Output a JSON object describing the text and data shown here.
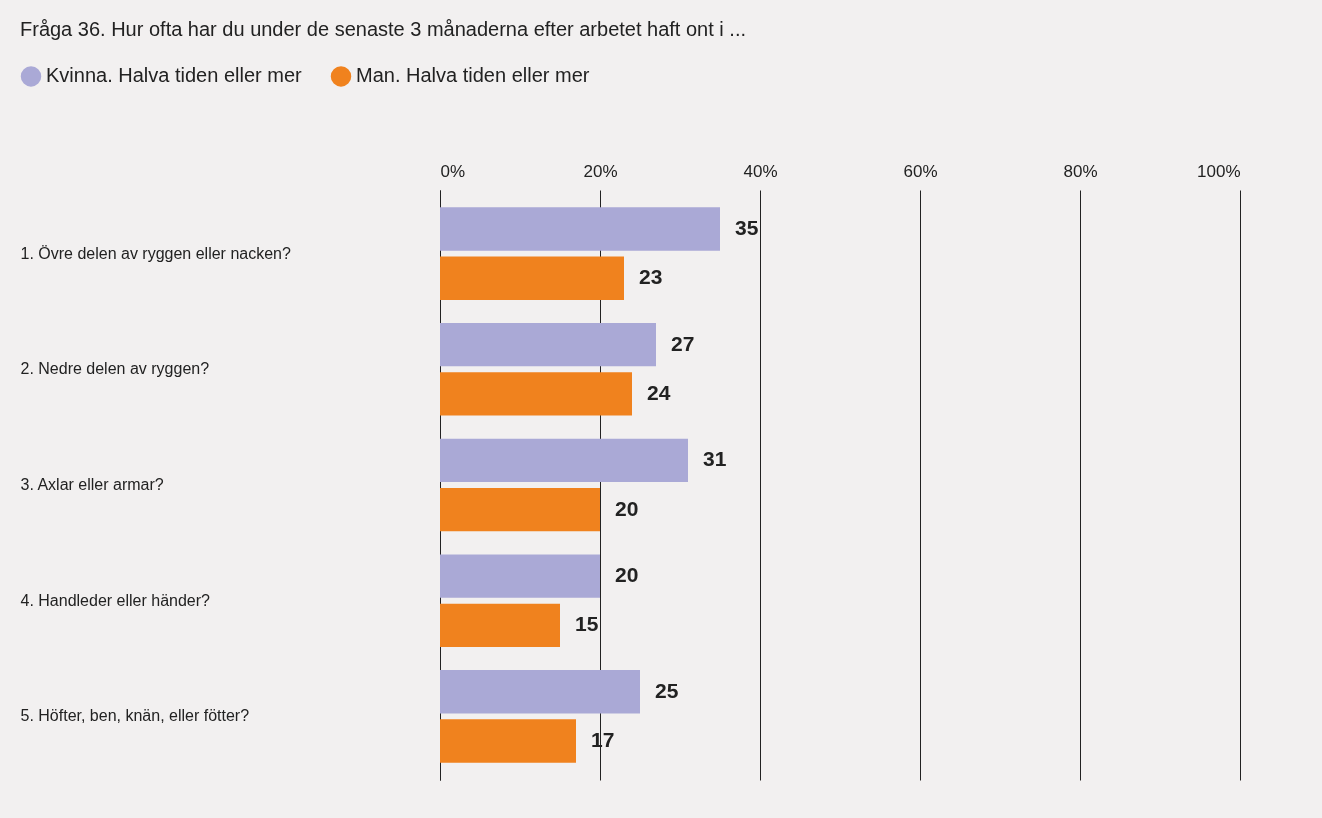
{
  "chart_data": {
    "type": "bar",
    "orientation": "horizontal",
    "title": "Fråga 36. Hur ofta har du under de senaste 3 månaderna efter arbetet haft ont i ...",
    "categories": [
      "1. Övre delen av ryggen eller nacken?",
      "2. Nedre delen av ryggen?",
      "3. Axlar eller armar?",
      "4. Handleder eller händer?",
      "5. Höfter, ben, knän, eller fötter?"
    ],
    "series": [
      {
        "name": "Kvinna. Halva tiden eller mer",
        "color": "#aaa9d6",
        "values": [
          35,
          27,
          31,
          20,
          25
        ]
      },
      {
        "name": "Man. Halva tiden eller mer",
        "color": "#f0821e",
        "values": [
          23,
          24,
          20,
          15,
          17
        ]
      }
    ],
    "xlim": [
      0,
      100
    ],
    "xticks": [
      {
        "value": 0,
        "label": "0%"
      },
      {
        "value": 20,
        "label": "20%"
      },
      {
        "value": 40,
        "label": "40%"
      },
      {
        "value": 60,
        "label": "60%"
      },
      {
        "value": 80,
        "label": "80%"
      },
      {
        "value": 100,
        "label": "100%"
      }
    ],
    "grid": "x",
    "legend": "top left",
    "data_labels": true
  }
}
